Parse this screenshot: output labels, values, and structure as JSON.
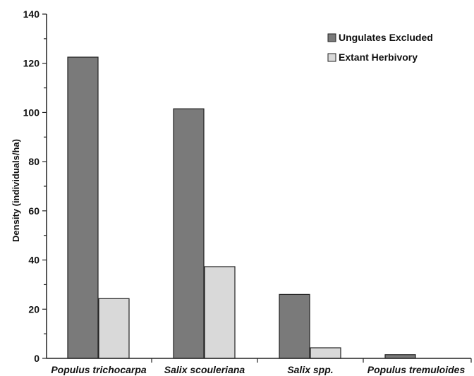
{
  "chart_data": {
    "type": "bar",
    "categories": [
      "Populus trichocarpa",
      "Salix scouleriana",
      "Salix spp.",
      "Populus tremuloides"
    ],
    "series": [
      {
        "name": "Ungulates Excluded",
        "values": [
          122.5,
          101.5,
          26,
          1.5
        ],
        "color": "#7a7a7a"
      },
      {
        "name": "Extant Herbivory",
        "values": [
          24.3,
          37.3,
          4.3,
          0
        ],
        "color": "#d9d9d9"
      }
    ],
    "title": "",
    "xlabel": "",
    "ylabel": "Density (individuals/ha)",
    "ylim": [
      0,
      140
    ],
    "yticks": [
      0,
      20,
      40,
      60,
      80,
      100,
      120,
      140
    ],
    "grid": false,
    "legend_position": "top-right"
  }
}
